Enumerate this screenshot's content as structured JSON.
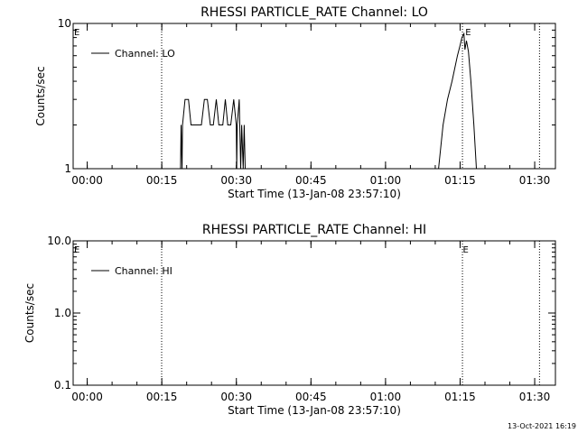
{
  "footer_stamp": "13-Oct-2021 16:19",
  "chart_data": [
    {
      "type": "line",
      "title": "RHESSI PARTICLE_RATE Channel: LO",
      "xlabel": "Start Time (13-Jan-08 23:57:10)",
      "ylabel": "Counts/sec",
      "xlim": [
        0,
        97
      ],
      "ylim": [
        1,
        10
      ],
      "yscale": "log",
      "grid": false,
      "legend_position": "top-left",
      "x_ticks": [
        {
          "value": 2.83,
          "label": "00:00"
        },
        {
          "value": 17.83,
          "label": "00:15"
        },
        {
          "value": 32.83,
          "label": "00:30"
        },
        {
          "value": 47.83,
          "label": "00:45"
        },
        {
          "value": 62.83,
          "label": "01:00"
        },
        {
          "value": 77.83,
          "label": "01:15"
        },
        {
          "value": 92.83,
          "label": "01:30"
        }
      ],
      "y_ticks": [
        {
          "value": 1,
          "label": "1"
        },
        {
          "value": 10,
          "label": "10"
        }
      ],
      "vlines": [
        17.8,
        78.3,
        93.8
      ],
      "e_markers": [
        0.1,
        78.8
      ],
      "series": [
        {
          "name": "Channel: LO",
          "color": "#000000",
          "points": [
            [
              21.6,
              1
            ],
            [
              21.7,
              2
            ],
            [
              21.9,
              1
            ],
            [
              22.0,
              2
            ],
            [
              22.5,
              3
            ],
            [
              23.2,
              3
            ],
            [
              23.7,
              2
            ],
            [
              25.8,
              2
            ],
            [
              26.4,
              3
            ],
            [
              27.0,
              3
            ],
            [
              27.6,
              2
            ],
            [
              28.2,
              2
            ],
            [
              28.8,
              3
            ],
            [
              29.3,
              2
            ],
            [
              30.1,
              2
            ],
            [
              30.6,
              3
            ],
            [
              31.1,
              2
            ],
            [
              31.7,
              2
            ],
            [
              32.3,
              3
            ],
            [
              32.8,
              2
            ],
            [
              32.9,
              1
            ],
            [
              33.0,
              2
            ],
            [
              33.4,
              3
            ],
            [
              33.7,
              1
            ],
            [
              33.9,
              2
            ],
            [
              34.2,
              1
            ],
            [
              34.4,
              2
            ],
            [
              34.6,
              1
            ],
            [
              73.5,
              1
            ],
            [
              74.4,
              2
            ],
            [
              75.3,
              3
            ],
            [
              76.2,
              4
            ],
            [
              76.8,
              5
            ],
            [
              77.3,
              6
            ],
            [
              77.8,
              7
            ],
            [
              78.2,
              8
            ],
            [
              78.6,
              8.5
            ],
            [
              78.8,
              6.6
            ],
            [
              79.1,
              7.6
            ],
            [
              79.5,
              6.4
            ],
            [
              80.0,
              4
            ],
            [
              80.6,
              2
            ],
            [
              81.1,
              1
            ]
          ]
        }
      ]
    },
    {
      "type": "line",
      "title": "RHESSI PARTICLE_RATE Channel: HI",
      "xlabel": "Start Time (13-Jan-08 23:57:10)",
      "ylabel": "Counts/sec",
      "xlim": [
        0,
        97
      ],
      "ylim": [
        0.1,
        10.0
      ],
      "yscale": "log",
      "grid": false,
      "legend_position": "top-left",
      "x_ticks": [
        {
          "value": 2.83,
          "label": "00:00"
        },
        {
          "value": 17.83,
          "label": "00:15"
        },
        {
          "value": 32.83,
          "label": "00:30"
        },
        {
          "value": 47.83,
          "label": "00:45"
        },
        {
          "value": 62.83,
          "label": "01:00"
        },
        {
          "value": 77.83,
          "label": "01:15"
        },
        {
          "value": 92.83,
          "label": "01:30"
        }
      ],
      "y_ticks": [
        {
          "value": 0.1,
          "label": "0.1"
        },
        {
          "value": 1.0,
          "label": "1.0"
        },
        {
          "value": 10.0,
          "label": "10.0"
        }
      ],
      "vlines": [
        17.8,
        78.3,
        93.8
      ],
      "e_markers": [
        0.1,
        78.3
      ],
      "series": [
        {
          "name": "Channel: HI",
          "color": "#000000",
          "points": []
        }
      ]
    }
  ]
}
